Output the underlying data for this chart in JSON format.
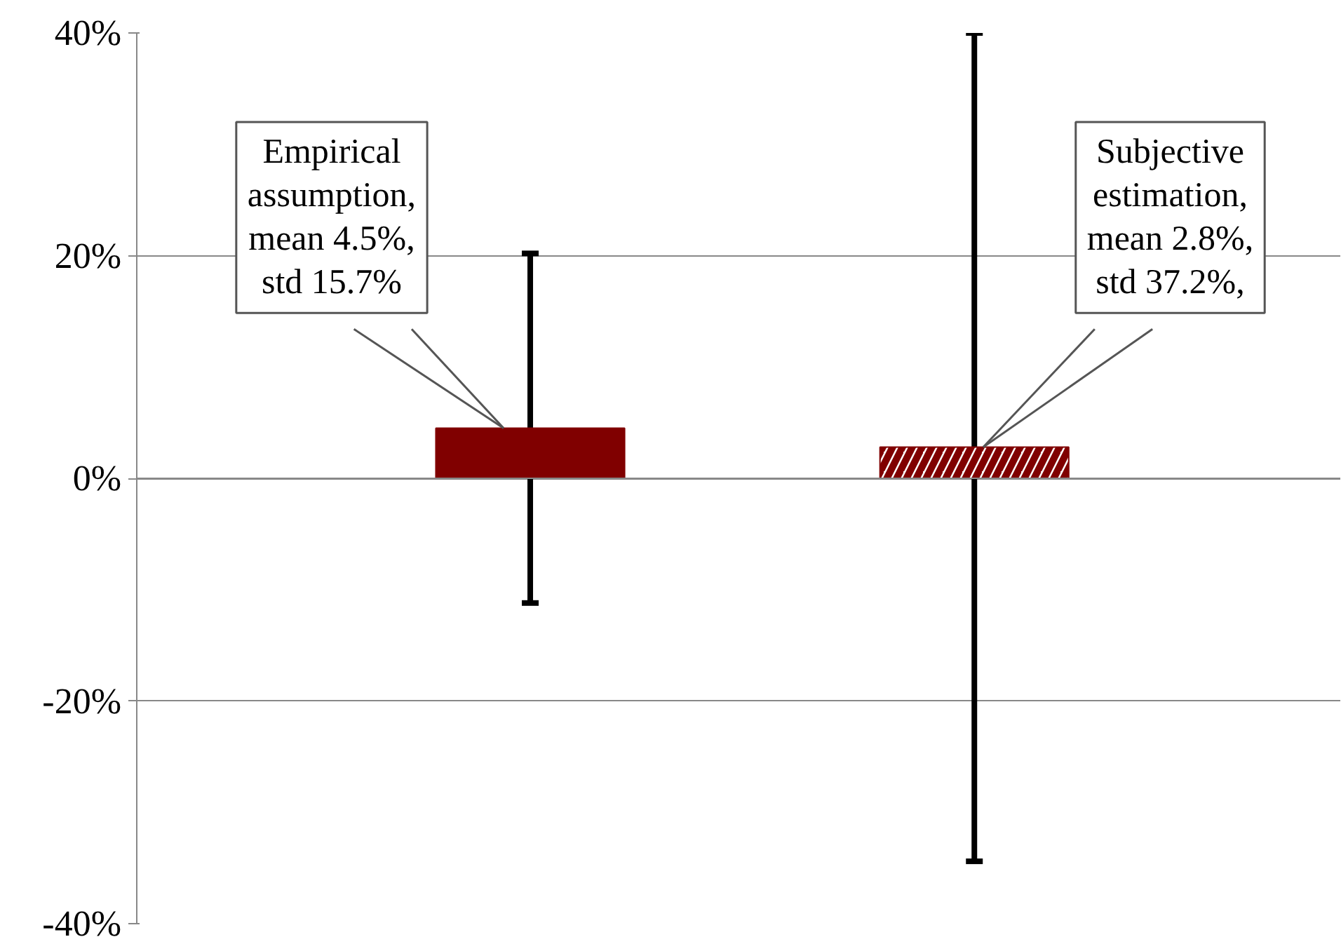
{
  "chart_data": {
    "type": "bar",
    "categories": [
      null,
      null
    ],
    "values": [
      4.5,
      2.8
    ],
    "errors": [
      15.7,
      37.2
    ],
    "colors": [
      "#800000",
      "#800000"
    ],
    "ylim": [
      -40,
      40
    ],
    "yticks": [
      {
        "value": -40,
        "label": "-40%"
      },
      {
        "value": -20,
        "label": "-20%"
      },
      {
        "value": 0,
        "label": "0%"
      },
      {
        "value": 20,
        "label": "20%"
      },
      {
        "value": 40,
        "label": "40%"
      }
    ],
    "grid": "y",
    "annotations": [
      "Empirical\nassumption,\nmean 4.5%,\nstd 15.7%",
      "Subjective\nestimation,\nmean 2.8%,\nstd 37.2%,"
    ]
  }
}
